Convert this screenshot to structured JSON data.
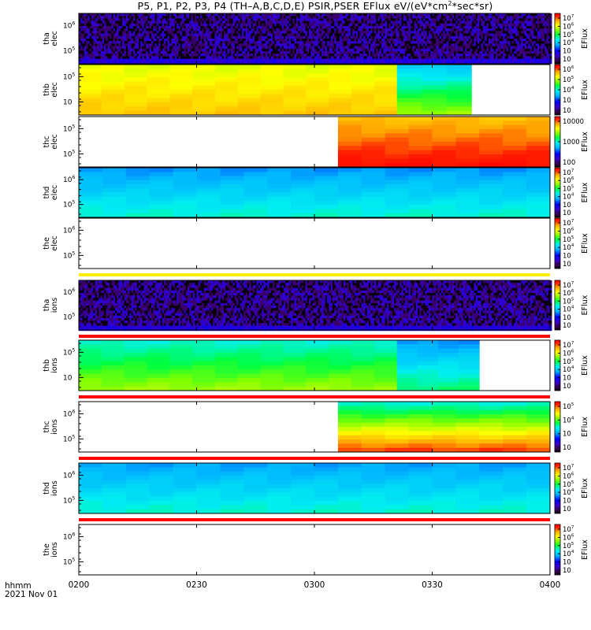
{
  "title": {
    "prefix": "P5, P1, P2, P3, P4 (TH–A,B,C,D,E) PSIR,PSER EFlux eV/(eV*cm",
    "sup": "2",
    "suffix": "*sec*sr)"
  },
  "colorbar_label": "EFlux",
  "x_axis": {
    "label_unit": "hhmm",
    "date": "2021 Nov 01",
    "ticks": [
      "0200",
      "0230",
      "0300",
      "0330",
      "0400"
    ],
    "range_minutes": [
      0,
      120
    ]
  },
  "colors": {
    "background": "#ffffff",
    "separator_red": "#ff0000",
    "separator_yellow": "#ffee00"
  },
  "chart_data": {
    "type": "heatmap",
    "x_unit": "minutes after 02:00 UT",
    "panels": [
      {
        "probe": "tha",
        "species": "elec",
        "ylabel": [
          "tha",
          "elec"
        ],
        "yticks": [
          "10⁶",
          "10⁵"
        ],
        "mode": "noise",
        "cbar_ticks": [
          "10⁷",
          "10⁶",
          "10⁵",
          "10⁴",
          "10⁳",
          "10⁲"
        ],
        "bar_below": ""
      },
      {
        "probe": "thb",
        "species": "elec",
        "ylabel": [
          "thb",
          "elec"
        ],
        "yticks": [
          "10⁵",
          "10⁳"
        ],
        "mode": "blocks",
        "cbar_ticks": [
          "10⁶",
          "10⁵",
          "10⁴",
          "10⁳",
          "10⁲"
        ],
        "bar_below": "",
        "blocks": [
          {
            "x0": 0,
            "x1": 81,
            "top_level": 0.74,
            "bottom_level": 0.82
          },
          {
            "x0": 81,
            "x1": 100,
            "top_level": 0.42,
            "bottom_level": 0.68
          }
        ]
      },
      {
        "probe": "thc",
        "species": "elec",
        "ylabel": [
          "thc",
          "elec"
        ],
        "yticks": [
          "10⁵",
          "10⁵"
        ],
        "mode": "blocks",
        "cbar_ticks": [
          "10000",
          "1000",
          "100"
        ],
        "bar_below": "",
        "blocks": [
          {
            "x0": 66,
            "x1": 120,
            "top_level": 0.83,
            "bottom_level": 0.97
          }
        ]
      },
      {
        "probe": "thd",
        "species": "elec",
        "ylabel": [
          "thd",
          "elec"
        ],
        "yticks": [
          "10⁶",
          "10⁵"
        ],
        "mode": "blocks",
        "cbar_ticks": [
          "10⁷",
          "10⁶",
          "10⁵",
          "10⁴",
          "10⁳",
          "10⁲"
        ],
        "bar_below": "",
        "blocks": [
          {
            "x0": 0,
            "x1": 120,
            "top_level": 0.36,
            "bottom_level": 0.5
          }
        ]
      },
      {
        "probe": "the",
        "species": "elec",
        "ylabel": [
          "the",
          "elec"
        ],
        "yticks": [
          "10⁶",
          "10⁵"
        ],
        "mode": "empty",
        "cbar_ticks": [
          "10⁷",
          "10⁶",
          "10⁵",
          "10⁴",
          "10⁳",
          "10⁲"
        ],
        "bar_below": "yellow"
      },
      {
        "probe": "tha",
        "species": "ions",
        "ylabel": [
          "tha",
          "ions"
        ],
        "yticks": [
          "10⁶",
          "10⁵"
        ],
        "mode": "noise",
        "cbar_ticks": [
          "10⁷",
          "10⁶",
          "10⁵",
          "10⁴",
          "10⁳",
          "10⁲"
        ],
        "bar_below": "red"
      },
      {
        "probe": "thb",
        "species": "ions",
        "ylabel": [
          "thb",
          "ions"
        ],
        "yticks": [
          "10⁵",
          "10⁳"
        ],
        "mode": "blocks",
        "cbar_ticks": [
          "10⁷",
          "10⁶",
          "10⁵",
          "10⁴",
          "10⁳",
          "10⁲"
        ],
        "bar_below": "red",
        "blocks": [
          {
            "x0": 0,
            "x1": 81,
            "top_level": 0.5,
            "bottom_level": 0.68
          },
          {
            "x0": 81,
            "x1": 102,
            "top_level": 0.36,
            "bottom_level": 0.55
          }
        ]
      },
      {
        "probe": "thc",
        "species": "ions",
        "ylabel": [
          "thc",
          "ions"
        ],
        "yticks": [
          "10⁶",
          "10⁵"
        ],
        "mode": "blocks",
        "cbar_ticks": [
          "10⁵",
          "10⁴",
          "10⁳",
          "10⁲"
        ],
        "bar_below": "red",
        "blocks": [
          {
            "x0": 66,
            "x1": 120,
            "top_level": 0.5,
            "bottom_level": 0.92
          }
        ]
      },
      {
        "probe": "thd",
        "species": "ions",
        "ylabel": [
          "thd",
          "ions"
        ],
        "yticks": [
          "10⁶",
          "10⁵"
        ],
        "mode": "blocks",
        "cbar_ticks": [
          "10⁷",
          "10⁶",
          "10⁵",
          "10⁴",
          "10⁳",
          "10⁲"
        ],
        "bar_below": "red",
        "blocks": [
          {
            "x0": 0,
            "x1": 120,
            "top_level": 0.37,
            "bottom_level": 0.5
          }
        ]
      },
      {
        "probe": "the",
        "species": "ions",
        "ylabel": [
          "the",
          "ions"
        ],
        "yticks": [
          "10⁶",
          "10⁵"
        ],
        "mode": "empty",
        "cbar_ticks": [
          "10⁷",
          "10⁶",
          "10⁵",
          "10⁴",
          "10⁳",
          "10⁲"
        ],
        "bar_below": ""
      }
    ]
  }
}
